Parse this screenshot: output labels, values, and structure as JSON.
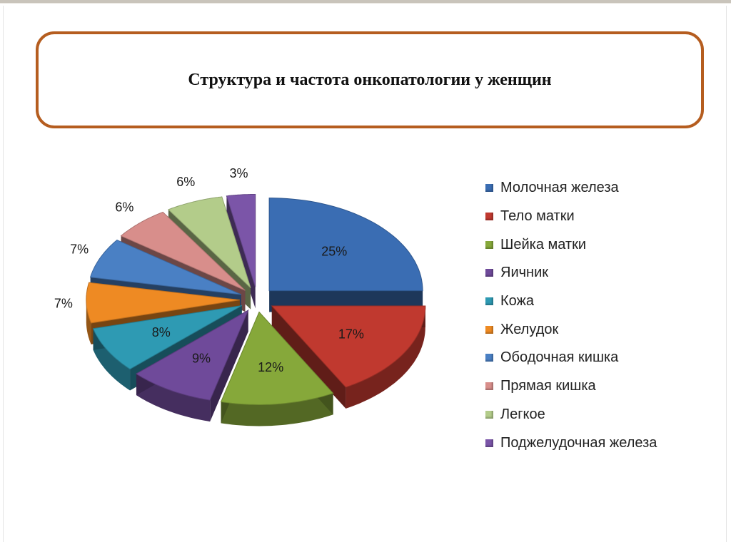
{
  "title": "Структура и частота онкопатологии у женщин",
  "chart_data": {
    "type": "pie",
    "title": "Структура и частота онкопатологии у женщин",
    "legend_position": "right",
    "slices": [
      {
        "label": "Молочная железа",
        "value": 25,
        "display": "25%",
        "color": "#3a6db3"
      },
      {
        "label": "Тело матки",
        "value": 17,
        "display": "17%",
        "color": "#c0392f"
      },
      {
        "label": "Шейка матки",
        "value": 12,
        "display": "12%",
        "color": "#86a83a"
      },
      {
        "label": "Яичник",
        "value": 9,
        "display": "9%",
        "color": "#6f4a9a"
      },
      {
        "label": "Кожа",
        "value": 8,
        "display": "8%",
        "color": "#2e9ab3"
      },
      {
        "label": "Желудок",
        "value": 7,
        "display": "7%",
        "color": "#ee8a23"
      },
      {
        "label": "Ободочная кишка",
        "value": 7,
        "display": "7%",
        "color": "#4a80c4"
      },
      {
        "label": "Прямая кишка",
        "value": 6,
        "display": "6%",
        "color": "#d88e8b"
      },
      {
        "label": "Легкое",
        "value": 6,
        "display": "6%",
        "color": "#b3cc8a"
      },
      {
        "label": "Поджелудочная железа",
        "value": 3,
        "display": "3%",
        "color": "#7b55a8"
      }
    ]
  }
}
